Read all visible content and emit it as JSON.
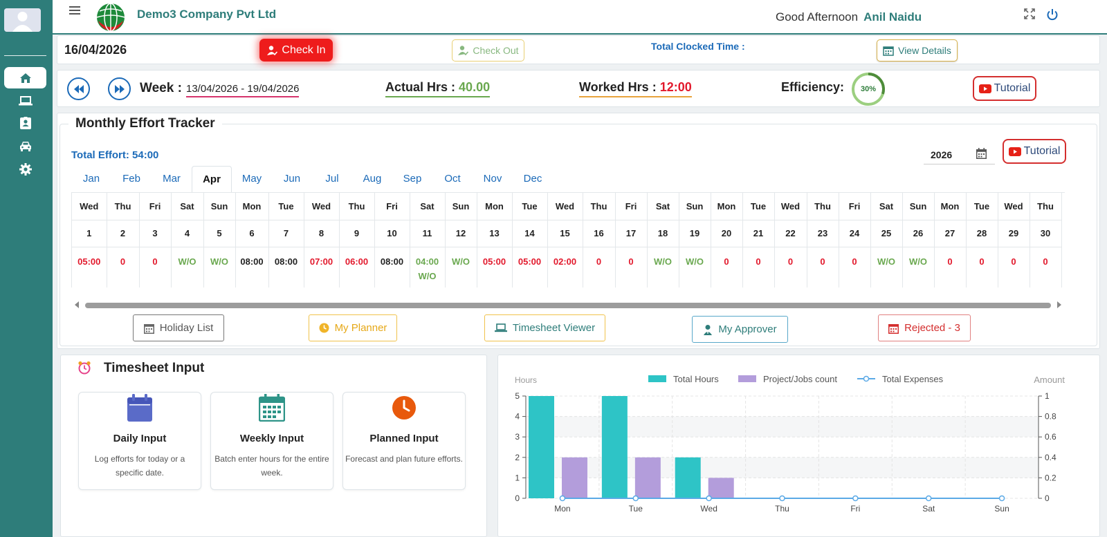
{
  "header": {
    "company": "Demo3 Company Pvt Ltd",
    "greeting": "Good Afternoon",
    "user": "Anil Naidu"
  },
  "sidebar": {
    "items": [
      {
        "icon": "home-icon",
        "active": true
      },
      {
        "icon": "laptop-icon",
        "active": false
      },
      {
        "icon": "id-badge-icon",
        "active": false
      },
      {
        "icon": "car-icon",
        "active": false
      },
      {
        "icon": "gear-icon",
        "active": false
      }
    ]
  },
  "attendance": {
    "date": "16/04/2026",
    "check_in": "Check In",
    "check_out": "Check Out",
    "clocked_label": "Total Clocked Time :",
    "view_details": "View Details"
  },
  "week": {
    "label": "Week :",
    "range": "13/04/2026 - 19/04/2026",
    "actual_label": "Actual Hrs :",
    "actual_value": "40.00",
    "worked_label": "Worked Hrs :",
    "worked_value": "12:00",
    "efficiency_label": "Efficiency:",
    "efficiency_value": "30%",
    "efficiency_fraction": 0.3,
    "tutorial": "Tutorial"
  },
  "tracker": {
    "title": "Monthly Effort Tracker",
    "total_effort": "Total Effort: 54:00",
    "year": "2026",
    "tutorial": "Tutorial",
    "months": [
      "Jan",
      "Feb",
      "Mar",
      "Apr",
      "May",
      "Jun",
      "Jul",
      "Aug",
      "Sep",
      "Oct",
      "Nov",
      "Dec"
    ],
    "active_month": "Apr",
    "days": [
      {
        "day": "Wed",
        "date": "1",
        "value": "05:00",
        "color": "red"
      },
      {
        "day": "Thu",
        "date": "2",
        "value": "0",
        "color": "red"
      },
      {
        "day": "Fri",
        "date": "3",
        "value": "0",
        "color": "red"
      },
      {
        "day": "Sat",
        "date": "4",
        "value": "W/O",
        "color": "green"
      },
      {
        "day": "Sun",
        "date": "5",
        "value": "W/O",
        "color": "green"
      },
      {
        "day": "Mon",
        "date": "6",
        "value": "08:00",
        "color": "black"
      },
      {
        "day": "Tue",
        "date": "7",
        "value": "08:00",
        "color": "black"
      },
      {
        "day": "Wed",
        "date": "8",
        "value": "07:00",
        "color": "red"
      },
      {
        "day": "Thu",
        "date": "9",
        "value": "06:00",
        "color": "red"
      },
      {
        "day": "Fri",
        "date": "10",
        "value": "08:00",
        "color": "black"
      },
      {
        "day": "Sat",
        "date": "11",
        "value": "04:00",
        "value2": "W/O",
        "color": "green"
      },
      {
        "day": "Sun",
        "date": "12",
        "value": "W/O",
        "color": "green"
      },
      {
        "day": "Mon",
        "date": "13",
        "value": "05:00",
        "color": "red"
      },
      {
        "day": "Tue",
        "date": "14",
        "value": "05:00",
        "color": "red"
      },
      {
        "day": "Wed",
        "date": "15",
        "value": "02:00",
        "color": "red"
      },
      {
        "day": "Thu",
        "date": "16",
        "value": "0",
        "color": "red"
      },
      {
        "day": "Fri",
        "date": "17",
        "value": "0",
        "color": "red"
      },
      {
        "day": "Sat",
        "date": "18",
        "value": "W/O",
        "color": "green"
      },
      {
        "day": "Sun",
        "date": "19",
        "value": "W/O",
        "color": "green"
      },
      {
        "day": "Mon",
        "date": "20",
        "value": "0",
        "color": "red"
      },
      {
        "day": "Tue",
        "date": "21",
        "value": "0",
        "color": "red"
      },
      {
        "day": "Wed",
        "date": "22",
        "value": "0",
        "color": "red"
      },
      {
        "day": "Thu",
        "date": "23",
        "value": "0",
        "color": "red"
      },
      {
        "day": "Fri",
        "date": "24",
        "value": "0",
        "color": "red"
      },
      {
        "day": "Sat",
        "date": "25",
        "value": "W/O",
        "color": "green"
      },
      {
        "day": "Sun",
        "date": "26",
        "value": "W/O",
        "color": "green"
      },
      {
        "day": "Mon",
        "date": "27",
        "value": "0",
        "color": "red"
      },
      {
        "day": "Tue",
        "date": "28",
        "value": "0",
        "color": "red"
      },
      {
        "day": "Wed",
        "date": "29",
        "value": "0",
        "color": "red"
      },
      {
        "day": "Thu",
        "date": "30",
        "value": "0",
        "color": "red"
      }
    ],
    "buttons": {
      "holiday": "Holiday List",
      "planner": "My Planner",
      "viewer": "Timesheet Viewer",
      "approver": "My Approver",
      "rejected": "Rejected - 3"
    }
  },
  "timesheet_input": {
    "title": "Timesheet Input",
    "cards": [
      {
        "title": "Daily Input",
        "desc": "Log efforts for today or a specific date."
      },
      {
        "title": "Weekly Input",
        "desc": "Batch enter hours for the entire week."
      },
      {
        "title": "Planned Input",
        "desc": "Forecast and plan future efforts."
      }
    ]
  },
  "colors": {
    "teal": "#2e7d7a",
    "blue": "#1b6ab8",
    "red": "#e2192c",
    "green": "#6aa84f",
    "bar_hours": "#2ec4c6",
    "bar_jobs": "#b39ddb",
    "line_expenses": "#5aa9e6"
  },
  "chart_data": {
    "type": "bar",
    "ylabel": "Hours",
    "y2label": "Amount",
    "categories": [
      "Mon",
      "Tue",
      "Wed",
      "Thu",
      "Fri",
      "Sat",
      "Sun"
    ],
    "series": [
      {
        "name": "Total Hours",
        "type": "bar",
        "values": [
          5,
          5,
          2,
          0,
          0,
          0,
          0
        ]
      },
      {
        "name": "Project/Jobs count",
        "type": "bar",
        "values": [
          2,
          2,
          1,
          0,
          0,
          0,
          0
        ]
      },
      {
        "name": "Total Expenses",
        "type": "line",
        "axis": "right",
        "values": [
          0,
          0,
          0,
          0,
          0,
          0,
          0
        ]
      }
    ],
    "ylim": [
      0,
      5
    ],
    "y2lim": [
      0,
      1
    ],
    "yticks": [
      "0",
      "1",
      "2",
      "3",
      "4",
      "5"
    ],
    "y2ticks": [
      "0",
      "0.2",
      "0.4",
      "0.6",
      "0.8",
      "1"
    ],
    "legend": "top",
    "grid": true
  }
}
